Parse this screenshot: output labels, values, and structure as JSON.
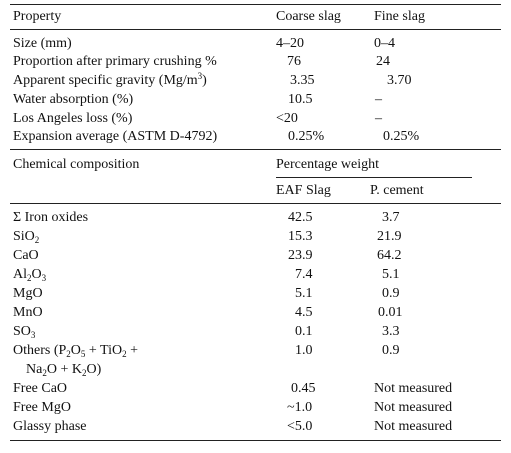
{
  "physical": {
    "headers": {
      "property": "Property",
      "coarse": "Coarse slag",
      "fine": "Fine slag"
    },
    "rows": [
      {
        "label": "Size (mm)",
        "coarse": "4–20",
        "fine": "0–4"
      },
      {
        "label": "Proportion after primary crushing %",
        "coarse": "76",
        "fine": "24"
      },
      {
        "label_pre": "Apparent specific gravity (Mg/m",
        "label_sup": "3",
        "label_post": ")",
        "coarse": "3.35",
        "fine": "3.70"
      },
      {
        "label": "Water absorption (%)",
        "coarse": "10.5",
        "fine": "–"
      },
      {
        "label": "Los Angeles loss (%)",
        "coarse": "<20",
        "fine": "–"
      },
      {
        "label": "Expansion average (ASTM D-4792)",
        "coarse": "0.25%",
        "fine": "0.25%"
      }
    ]
  },
  "chemical": {
    "headers": {
      "composition": "Chemical composition",
      "percentage": "Percentage weight",
      "eaf": "EAF Slag",
      "cement": "P. cement"
    },
    "rows": [
      {
        "label": "Σ Iron oxides",
        "eaf": "42.5",
        "cement": "3.7"
      },
      {
        "label_pre": "SiO",
        "label_sub": "2",
        "eaf": "15.3",
        "cement": "21.9"
      },
      {
        "label": "CaO",
        "eaf": "23.9",
        "cement": "64.2"
      },
      {
        "label_pre": "Al",
        "label_sub": "2",
        "label_mid": "O",
        "label_sub2": "3",
        "eaf": "7.4",
        "cement": "5.1"
      },
      {
        "label": "MgO",
        "eaf": "5.1",
        "cement": "0.9"
      },
      {
        "label": "MnO",
        "eaf": "4.5",
        "cement": "0.01"
      },
      {
        "label_pre": "SO",
        "label_sub": "3",
        "eaf": "0.1",
        "cement": "3.3"
      },
      {
        "line1": {
          "a": "Others (P",
          "a_sub": "2",
          "b": "O",
          "b_sub": "5",
          "c": " + TiO",
          "c_sub": "2",
          "d": " +"
        },
        "line2": {
          "a": "Na",
          "a_sub": "2",
          "b": "O + K",
          "b_sub": "2",
          "c": "O)"
        },
        "eaf": "1.0",
        "cement": "0.9"
      },
      {
        "label": "Free CaO",
        "eaf": "0.45",
        "cement": "Not measured"
      },
      {
        "label": "Free MgO",
        "eaf": "~1.0",
        "cement": "Not measured"
      },
      {
        "label": "Glassy phase",
        "eaf": "<5.0",
        "cement": "Not measured"
      }
    ]
  }
}
